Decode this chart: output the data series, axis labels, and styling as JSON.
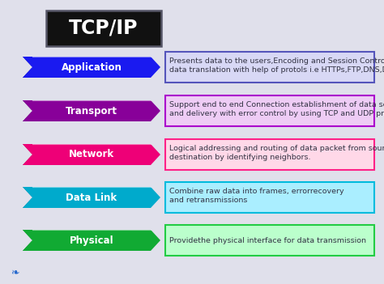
{
  "title": "TCP/IP",
  "background_color": "#e0e0eb",
  "title_box_color": "#111111",
  "title_text_color": "#ffffff",
  "title_border_color": "#555566",
  "layers": [
    {
      "name": "Application",
      "label_color": "#1a1af0",
      "label_shadow": "#0000aa",
      "desc_box_color": "#d8d8f5",
      "desc_border_color": "#5555bb",
      "description_line1": "Presents data to the users,Encoding and Session Controlt ,",
      "description_line2": "data translation with help of protols i.e HTTPs,FTP,DNS,DHCP"
    },
    {
      "name": "Transport",
      "label_color": "#880099",
      "label_shadow": "#550066",
      "desc_box_color": "#eeccf5",
      "desc_border_color": "#aa00cc",
      "description_line1": "Support end to end Connection establishment of data segments",
      "description_line2": "and delivery with error control by using TCP and UDP protocols"
    },
    {
      "name": "Network",
      "label_color": "#ee0077",
      "label_shadow": "#aa0044",
      "desc_box_color": "#ffd8e8",
      "desc_border_color": "#ff2288",
      "description_line1": "Logical addressing and routing of data packet from source to",
      "description_line2": "destination by identifying neighbors."
    },
    {
      "name": "Data Link",
      "label_color": "#00aacc",
      "label_shadow": "#007799",
      "desc_box_color": "#aaeeff",
      "desc_border_color": "#00bbdd",
      "description_line1": "Combine raw data into frames, errorrecovery",
      "description_line2": "and retransmissions"
    },
    {
      "name": "Physical",
      "label_color": "#11aa33",
      "label_shadow": "#008822",
      "desc_box_color": "#bbffcc",
      "desc_border_color": "#22cc44",
      "description_line1": "Providethe physical interface for data transmission",
      "description_line2": ""
    }
  ],
  "label_text_color": "#ffffff",
  "desc_text_color": "#333344",
  "label_font_size": 8.5,
  "desc_font_size": 6.8,
  "icon_color": "#2266cc"
}
